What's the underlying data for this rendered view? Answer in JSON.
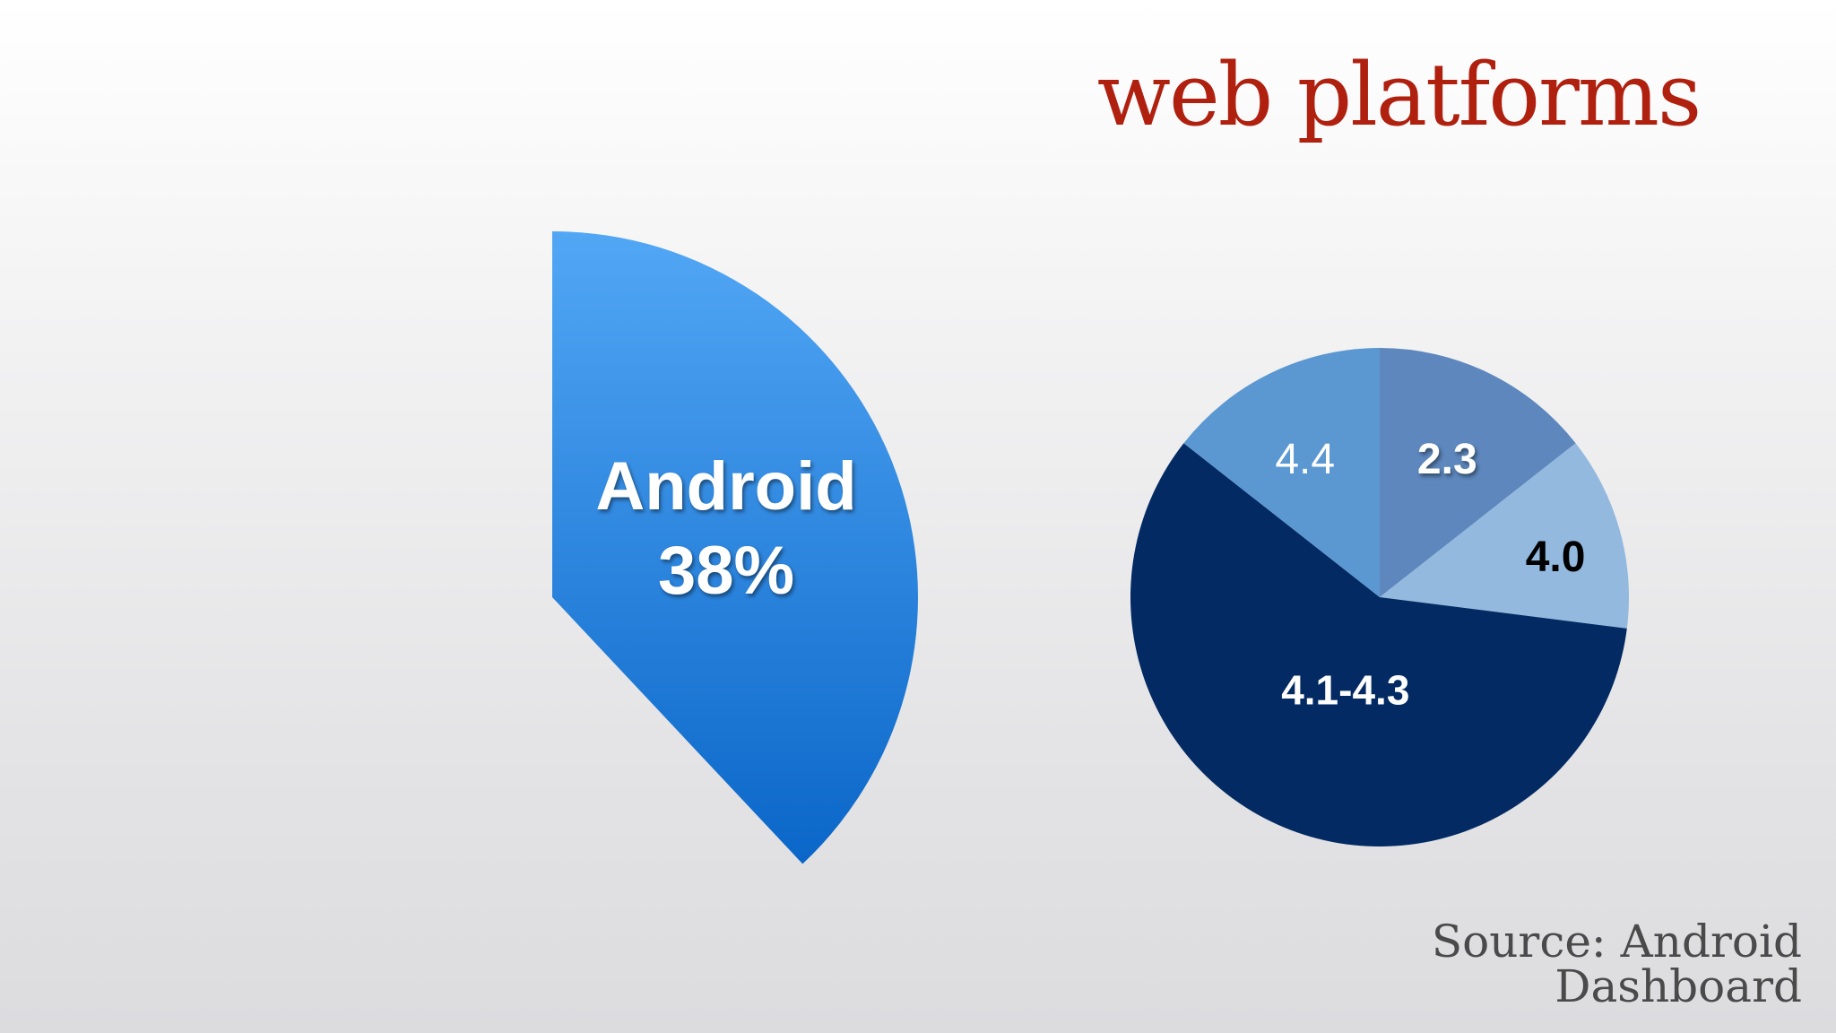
{
  "slide": {
    "title": "web platforms",
    "source": "Source: Android Dashboard"
  },
  "colors": {
    "title": "#b0200f",
    "android_gradient_top": "#52a7f5",
    "android_gradient_bottom": "#0a66c8",
    "v23": "#5d87bd",
    "v40": "#93b9de",
    "v41_43": "#032a63",
    "v44": "#5b98d1"
  },
  "chart_data": [
    {
      "type": "pie",
      "title": "",
      "slices": [
        {
          "label": "Android",
          "value": 38,
          "display": "38%"
        }
      ]
    },
    {
      "type": "pie",
      "title": "",
      "slices": [
        {
          "label": "2.3",
          "value": 14.4
        },
        {
          "label": "4.0",
          "value": 12.6
        },
        {
          "label": "4.1-4.3",
          "value": 58.6
        },
        {
          "label": "4.4",
          "value": 14.4
        }
      ]
    }
  ]
}
